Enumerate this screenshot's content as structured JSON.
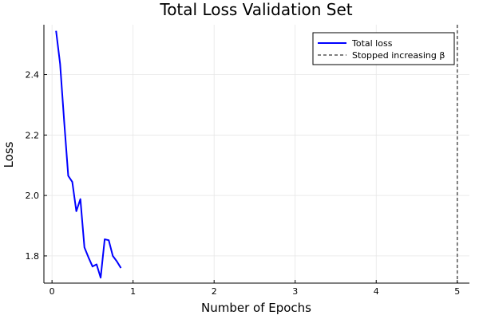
{
  "chart_data": {
    "type": "line",
    "title": "Total Loss Validation Set",
    "xlabel": "Number of Epochs",
    "ylabel": "Loss",
    "xlim": [
      -0.1,
      5.15
    ],
    "ylim": [
      1.71,
      2.565
    ],
    "xticks": [
      0,
      1,
      2,
      3,
      4,
      5
    ],
    "yticks": [
      1.8,
      2.0,
      2.2,
      2.4
    ],
    "ytick_labels": [
      "1.8",
      "2.0",
      "2.2",
      "2.4"
    ],
    "grid": true,
    "legend_position": "top-right",
    "series": [
      {
        "name": "Total loss",
        "color": "#0000ff",
        "x": [
          0.05,
          0.1,
          0.15,
          0.2,
          0.25,
          0.3,
          0.35,
          0.4,
          0.45,
          0.5,
          0.55,
          0.6,
          0.65,
          0.7,
          0.75,
          0.8,
          0.85
        ],
        "y": [
          2.545,
          2.435,
          2.245,
          2.065,
          2.045,
          1.948,
          1.988,
          1.828,
          1.795,
          1.765,
          1.772,
          1.728,
          1.855,
          1.852,
          1.8,
          1.782,
          1.76
        ]
      }
    ],
    "vlines": [
      {
        "name": "Stopped increasing β",
        "x": 5,
        "color": "#555555",
        "style": "dashed"
      }
    ]
  }
}
